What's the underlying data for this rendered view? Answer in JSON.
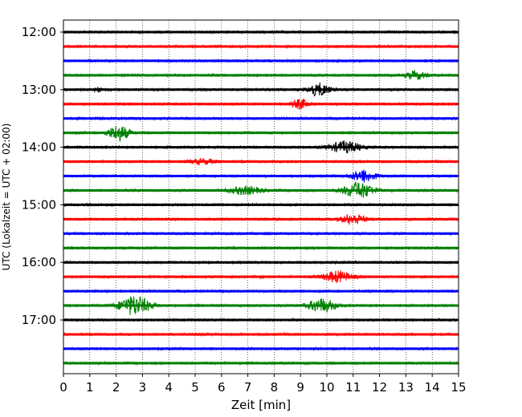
{
  "chart_data": {
    "type": "line",
    "xlabel": "Zeit  [min]",
    "ylabel": "UTC (Lokalzeit = UTC + 02:00)",
    "xlim": [
      0,
      15
    ],
    "x_ticks": [
      0,
      1,
      2,
      3,
      4,
      5,
      6,
      7,
      8,
      9,
      10,
      11,
      12,
      13,
      14,
      15
    ],
    "y_ticks": [
      "12:00",
      "13:00",
      "14:00",
      "15:00",
      "16:00",
      "17:00"
    ],
    "grid_x": true,
    "row_interval_min": 15,
    "start_time": "12:00",
    "colors": [
      "#000000",
      "#ff0000",
      "#0000ff",
      "#008000"
    ],
    "traces": [
      {
        "start": "12:00",
        "color": "#000000",
        "bursts": []
      },
      {
        "start": "12:15",
        "color": "#ff0000",
        "bursts": []
      },
      {
        "start": "12:30",
        "color": "#0000ff",
        "bursts": []
      },
      {
        "start": "12:45",
        "color": "#008000",
        "bursts": [
          {
            "t": 13.4,
            "amp": 0.35,
            "w": 0.6
          }
        ]
      },
      {
        "start": "13:00",
        "color": "#000000",
        "bursts": [
          {
            "t": 9.7,
            "amp": 0.55,
            "w": 0.6
          },
          {
            "t": 1.3,
            "amp": 0.2,
            "w": 0.2
          }
        ]
      },
      {
        "start": "13:15",
        "color": "#ff0000",
        "bursts": [
          {
            "t": 9.0,
            "amp": 0.4,
            "w": 0.5
          }
        ]
      },
      {
        "start": "13:30",
        "color": "#0000ff",
        "bursts": []
      },
      {
        "start": "13:45",
        "color": "#008000",
        "bursts": [
          {
            "t": 2.1,
            "amp": 0.7,
            "w": 0.6
          }
        ]
      },
      {
        "start": "14:00",
        "color": "#000000",
        "bursts": [
          {
            "t": 10.7,
            "amp": 0.5,
            "w": 0.9
          }
        ]
      },
      {
        "start": "14:15",
        "color": "#ff0000",
        "bursts": [
          {
            "t": 5.3,
            "amp": 0.2,
            "w": 0.8
          }
        ]
      },
      {
        "start": "14:30",
        "color": "#0000ff",
        "bursts": [
          {
            "t": 11.4,
            "amp": 0.55,
            "w": 0.7
          }
        ]
      },
      {
        "start": "14:45",
        "color": "#008000",
        "bursts": [
          {
            "t": 6.9,
            "amp": 0.35,
            "w": 0.9
          },
          {
            "t": 11.2,
            "amp": 0.7,
            "w": 0.9
          }
        ]
      },
      {
        "start": "15:00",
        "color": "#000000",
        "bursts": []
      },
      {
        "start": "15:15",
        "color": "#ff0000",
        "bursts": [
          {
            "t": 11.0,
            "amp": 0.45,
            "w": 0.7
          }
        ]
      },
      {
        "start": "15:30",
        "color": "#0000ff",
        "bursts": []
      },
      {
        "start": "15:45",
        "color": "#008000",
        "bursts": []
      },
      {
        "start": "16:00",
        "color": "#000000",
        "bursts": []
      },
      {
        "start": "16:15",
        "color": "#ff0000",
        "bursts": [
          {
            "t": 10.4,
            "amp": 0.5,
            "w": 0.8
          }
        ]
      },
      {
        "start": "16:30",
        "color": "#0000ff",
        "bursts": []
      },
      {
        "start": "16:45",
        "color": "#008000",
        "bursts": [
          {
            "t": 2.7,
            "amp": 0.85,
            "w": 0.9
          },
          {
            "t": 9.8,
            "amp": 0.6,
            "w": 0.8
          }
        ]
      },
      {
        "start": "17:00",
        "color": "#000000",
        "bursts": []
      },
      {
        "start": "17:15",
        "color": "#ff0000",
        "bursts": []
      },
      {
        "start": "17:30",
        "color": "#0000ff",
        "bursts": []
      },
      {
        "start": "17:45",
        "color": "#008000",
        "bursts": []
      }
    ]
  }
}
